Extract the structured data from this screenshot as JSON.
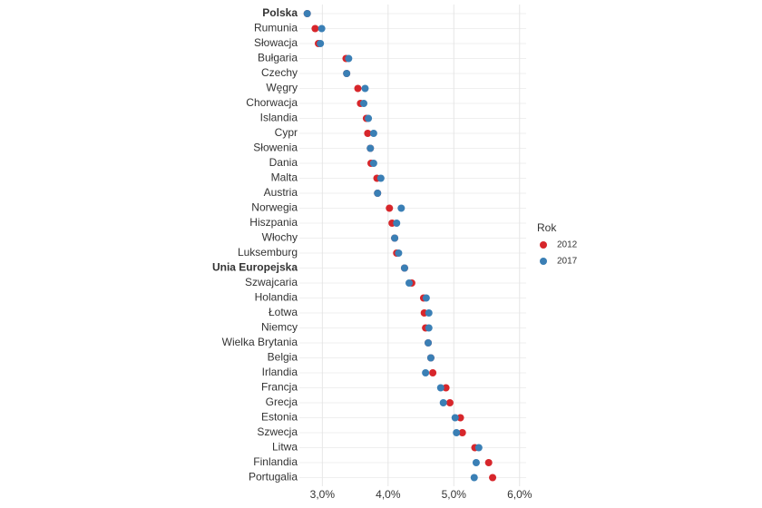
{
  "chart_data": {
    "type": "dot",
    "categories": [
      "Polska",
      "Rumunia",
      "Słowacja",
      "Bułgaria",
      "Czechy",
      "Węgry",
      "Chorwacja",
      "Islandia",
      "Cypr",
      "Słowenia",
      "Dania",
      "Malta",
      "Austria",
      "Norwegia",
      "Hiszpania",
      "Włochy",
      "Luksemburg",
      "Unia Europejska",
      "Szwajcaria",
      "Holandia",
      "Łotwa",
      "Niemcy",
      "Wielka Brytania",
      "Belgia",
      "Irlandia",
      "Francja",
      "Grecja",
      "Estonia",
      "Szwecja",
      "Litwa",
      "Finlandia",
      "Portugalia"
    ],
    "highlight": [
      0,
      17
    ],
    "series": [
      {
        "name": "2012",
        "color": "#d7262b",
        "values": [
          2.77,
          2.89,
          2.94,
          3.36,
          3.37,
          3.54,
          3.58,
          3.67,
          3.69,
          3.73,
          3.74,
          3.83,
          3.84,
          4.02,
          4.06,
          4.1,
          4.13,
          4.25,
          4.36,
          4.54,
          4.55,
          4.57,
          4.61,
          4.65,
          4.68,
          4.88,
          4.94,
          5.1,
          5.13,
          5.32,
          5.53,
          5.59
        ]
      },
      {
        "name": "2017",
        "color": "#3a7fb5",
        "values": [
          2.77,
          2.99,
          2.97,
          3.4,
          3.37,
          3.65,
          3.63,
          3.7,
          3.78,
          3.73,
          3.78,
          3.89,
          3.84,
          4.2,
          4.13,
          4.1,
          4.16,
          4.25,
          4.32,
          4.58,
          4.62,
          4.62,
          4.61,
          4.65,
          4.57,
          4.8,
          4.84,
          5.02,
          5.04,
          5.38,
          5.34,
          5.31
        ]
      }
    ],
    "legend_title": "Rok",
    "xlim": [
      2.65,
      6.1
    ],
    "xticks": [
      {
        "value": 3,
        "label": "3,0%"
      },
      {
        "value": 4,
        "label": "4,0%"
      },
      {
        "value": 5,
        "label": "5,0%"
      },
      {
        "value": 6,
        "label": "6,0%"
      }
    ],
    "grid": true
  }
}
